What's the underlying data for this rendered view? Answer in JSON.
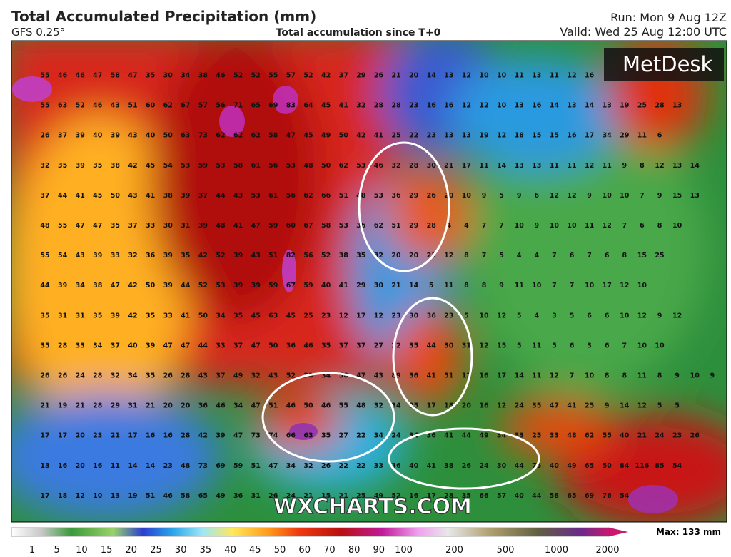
{
  "header": {
    "title": "Total Accumulated Precipitation (mm)",
    "model": "GFS 0.25°",
    "subtitle": "Total accumulation since T+0",
    "run": "Run: Mon 9 Aug 12Z",
    "valid": "Valid: Wed 25 Aug 12:00 UTC"
  },
  "logo": "MetDesk",
  "watermark": "WXCHARTS.COM",
  "grid_values": [
    [
      55,
      46,
      46,
      47,
      58,
      47,
      35,
      30,
      34,
      38,
      46,
      52,
      52,
      55,
      57,
      52,
      42,
      37,
      29,
      26,
      21,
      20,
      14,
      13,
      12,
      10,
      10,
      11,
      13,
      11,
      12,
      16
    ],
    [
      55,
      63,
      52,
      46,
      43,
      51,
      60,
      62,
      67,
      57,
      56,
      71,
      65,
      69,
      83,
      64,
      45,
      41,
      32,
      28,
      28,
      23,
      16,
      16,
      12,
      12,
      10,
      13,
      16,
      14,
      13,
      14,
      13,
      19,
      25,
      28,
      13
    ],
    [
      26,
      37,
      39,
      40,
      39,
      43,
      40,
      50,
      63,
      73,
      62,
      62,
      62,
      58,
      47,
      45,
      49,
      50,
      42,
      41,
      25,
      22,
      23,
      13,
      13,
      19,
      12,
      18,
      15,
      15,
      16,
      17,
      34,
      29,
      11,
      6
    ],
    [
      32,
      35,
      39,
      35,
      38,
      42,
      45,
      54,
      53,
      59,
      53,
      58,
      61,
      56,
      53,
      48,
      50,
      62,
      53,
      46,
      32,
      28,
      30,
      21,
      17,
      11,
      14,
      13,
      13,
      11,
      11,
      12,
      11,
      9,
      8,
      12,
      13,
      14
    ],
    [
      37,
      44,
      41,
      45,
      50,
      43,
      41,
      38,
      39,
      37,
      44,
      43,
      53,
      61,
      56,
      62,
      66,
      51,
      48,
      53,
      36,
      29,
      26,
      20,
      10,
      9,
      5,
      9,
      6,
      12,
      12,
      9,
      10,
      10,
      7,
      9,
      15,
      13
    ],
    [
      48,
      55,
      47,
      47,
      35,
      37,
      33,
      30,
      31,
      39,
      48,
      41,
      47,
      59,
      60,
      67,
      58,
      53,
      36,
      62,
      51,
      29,
      28,
      4,
      4,
      7,
      7,
      10,
      9,
      10,
      10,
      11,
      12,
      7,
      6,
      8,
      10
    ],
    [
      55,
      54,
      43,
      39,
      33,
      32,
      36,
      39,
      35,
      42,
      52,
      39,
      43,
      51,
      82,
      56,
      52,
      38,
      35,
      32,
      20,
      20,
      21,
      12,
      8,
      7,
      5,
      4,
      4,
      7,
      6,
      7,
      6,
      8,
      15,
      25
    ],
    [
      44,
      39,
      34,
      38,
      47,
      42,
      50,
      39,
      44,
      52,
      53,
      39,
      39,
      59,
      67,
      59,
      40,
      41,
      29,
      30,
      21,
      14,
      5,
      11,
      8,
      8,
      9,
      11,
      10,
      7,
      7,
      10,
      17,
      12,
      10
    ],
    [
      35,
      31,
      31,
      35,
      39,
      42,
      35,
      33,
      41,
      50,
      34,
      35,
      45,
      63,
      45,
      25,
      23,
      12,
      17,
      12,
      23,
      30,
      36,
      23,
      5,
      10,
      12,
      5,
      4,
      3,
      5,
      6,
      6,
      10,
      12,
      9,
      12
    ],
    [
      35,
      28,
      33,
      34,
      37,
      40,
      39,
      47,
      47,
      44,
      33,
      37,
      47,
      50,
      36,
      46,
      35,
      37,
      37,
      27,
      22,
      35,
      44,
      30,
      31,
      12,
      15,
      5,
      11,
      5,
      6,
      3,
      6,
      7,
      10,
      10
    ],
    [
      26,
      26,
      24,
      28,
      32,
      34,
      35,
      26,
      28,
      43,
      37,
      49,
      32,
      43,
      52,
      30,
      34,
      50,
      47,
      43,
      89,
      36,
      41,
      51,
      12,
      16,
      17,
      14,
      11,
      12,
      7,
      10,
      8,
      8,
      11,
      8,
      9,
      10,
      9
    ],
    [
      21,
      19,
      21,
      28,
      29,
      31,
      21,
      20,
      20,
      36,
      46,
      34,
      47,
      51,
      46,
      50,
      46,
      55,
      48,
      32,
      34,
      25,
      17,
      18,
      20,
      16,
      12,
      24,
      35,
      47,
      41,
      25,
      9,
      14,
      12,
      5,
      5
    ],
    [
      17,
      17,
      20,
      23,
      21,
      17,
      16,
      16,
      28,
      42,
      39,
      47,
      73,
      74,
      66,
      63,
      35,
      27,
      22,
      34,
      24,
      34,
      36,
      41,
      44,
      49,
      34,
      33,
      25,
      33,
      48,
      62,
      55,
      40,
      21,
      24,
      23,
      26
    ],
    [
      13,
      16,
      20,
      16,
      11,
      14,
      14,
      23,
      48,
      73,
      69,
      59,
      51,
      47,
      34,
      32,
      26,
      22,
      22,
      33,
      36,
      40,
      41,
      38,
      26,
      24,
      30,
      44,
      75,
      40,
      49,
      65,
      50,
      84,
      116,
      85,
      54
    ],
    [
      17,
      18,
      12,
      10,
      13,
      19,
      51,
      46,
      58,
      65,
      49,
      36,
      31,
      26,
      24,
      21,
      15,
      21,
      25,
      49,
      52,
      16,
      17,
      28,
      35,
      66,
      57,
      40,
      44,
      58,
      65,
      69,
      76,
      54
    ]
  ],
  "legend": {
    "labels": [
      1,
      5,
      10,
      15,
      20,
      25,
      30,
      35,
      40,
      45,
      50,
      60,
      70,
      80,
      90,
      100,
      200,
      500,
      1000,
      2000
    ],
    "max_label": "Max: 133 mm"
  }
}
